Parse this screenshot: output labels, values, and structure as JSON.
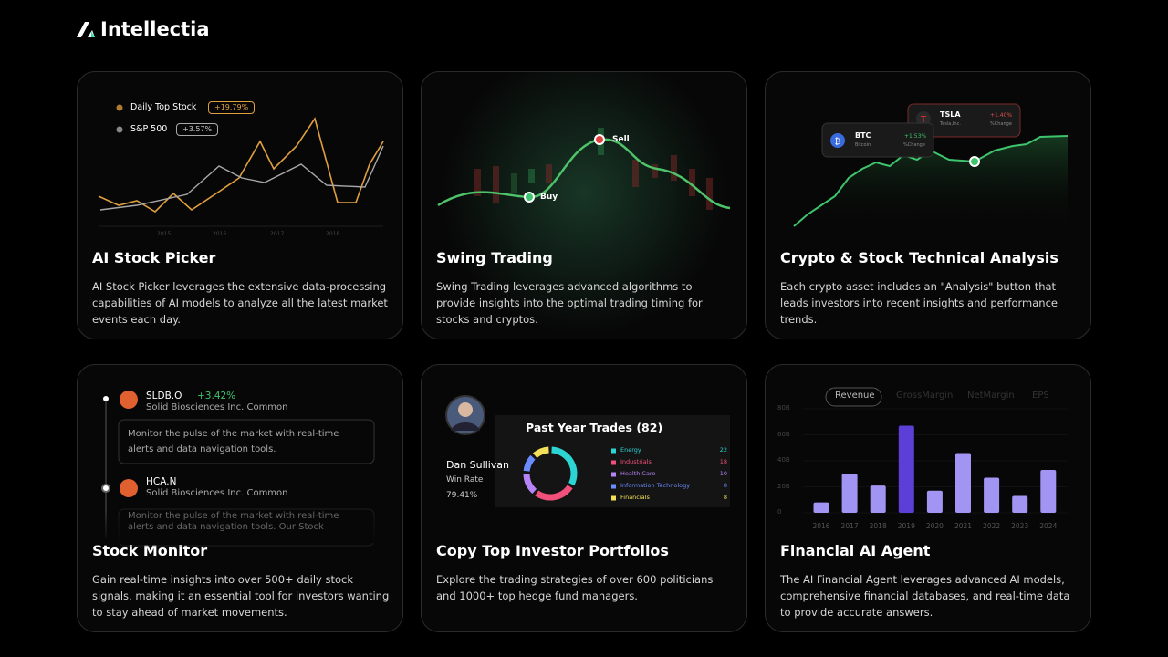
{
  "brand": "Intellectia",
  "cards": [
    {
      "title": "AI Stock Picker",
      "description": "AI Stock Picker leverages the extensive data-processing capabilities of AI models to analyze all the latest market events each day.",
      "legend": [
        {
          "name": "Daily Top Stock",
          "change": "+19.79%"
        },
        {
          "name": "S&P 500",
          "change": "+3.57%"
        }
      ],
      "years": [
        "2015",
        "2016",
        "2017",
        "2018"
      ]
    },
    {
      "title": "Swing Trading",
      "description": "Swing Trading leverages advanced algorithms to provide insights into the optimal trading timing for stocks and cryptos.",
      "buy": "Buy",
      "sell": "Sell"
    },
    {
      "title": "Crypto & Stock Technical Analysis",
      "description": "Each crypto asset includes an \"Analysis\" button that leads investors into recent insights and performance trends.",
      "quotes": [
        {
          "symbol": "TSLA",
          "company": "Tesla,Inc.",
          "change": "+1.40%",
          "change_label": "%Change"
        },
        {
          "symbol": "BTC",
          "company": "Bitcoin",
          "change": "+1.53%",
          "change_label": "%Change"
        }
      ]
    },
    {
      "title": "Stock Monitor",
      "description": "Gain real-time insights into over 500+ daily stock signals, making it an essential tool for investors wanting to stay ahead of market movements.",
      "alerts": [
        {
          "symbol": "SLDB.O",
          "change": "+3.42%",
          "company": "Solid Biosciences Inc. Common",
          "message": "Monitor the pulse of the market with real-time alerts and data navigation tools."
        },
        {
          "symbol": "HCA.N",
          "company": "Solid Biosciences Inc. Common",
          "message": "Monitor the pulse of the market with real-time alerts and data navigation tools. Our Stock"
        }
      ]
    },
    {
      "title": "Copy Top Investor Portfolios",
      "description": "Explore the trading strategies of over 600 politicians and 1000+ top hedge fund managers.",
      "investor": {
        "name": "Dan Sullivan",
        "win_rate_label": "Win Rate",
        "win_rate": "79.41%"
      },
      "trades_title": "Past Year Trades (82)",
      "sectors": [
        {
          "name": "Energy",
          "count": 22,
          "color": "#2dd4d4"
        },
        {
          "name": "Industrials",
          "count": 18,
          "color": "#f0507a"
        },
        {
          "name": "Health Care",
          "count": 10,
          "color": "#b784f5"
        },
        {
          "name": "Information Technology",
          "count": 8,
          "color": "#6b8cff"
        },
        {
          "name": "Financials",
          "count": 8,
          "color": "#f2e05a"
        }
      ]
    },
    {
      "title": "Financial AI Agent",
      "description": "The AI Financial Agent leverages advanced AI models, comprehensive financial databases, and real-time data to provide accurate answers.",
      "tabs": [
        "Revenue",
        "GrossMargin",
        "NetMargin",
        "EPS"
      ],
      "chart": {
        "type": "bar",
        "categories": [
          "2016",
          "2017",
          "2018",
          "2019",
          "2020",
          "2021",
          "2022",
          "2023",
          "2024"
        ],
        "values": [
          8,
          30,
          21,
          67,
          17,
          46,
          27,
          13,
          33
        ],
        "color": "#a294f2",
        "highlight_color": "#5b3fd6",
        "ylim": [
          0,
          80
        ],
        "yticks": [
          0,
          {
            "value": 20,
            "label": "20B"
          },
          {
            "value": 40,
            "label": "40B"
          },
          {
            "value": 60,
            "label": "60B"
          },
          {
            "value": 80,
            "label": "80B"
          }
        ]
      }
    }
  ]
}
